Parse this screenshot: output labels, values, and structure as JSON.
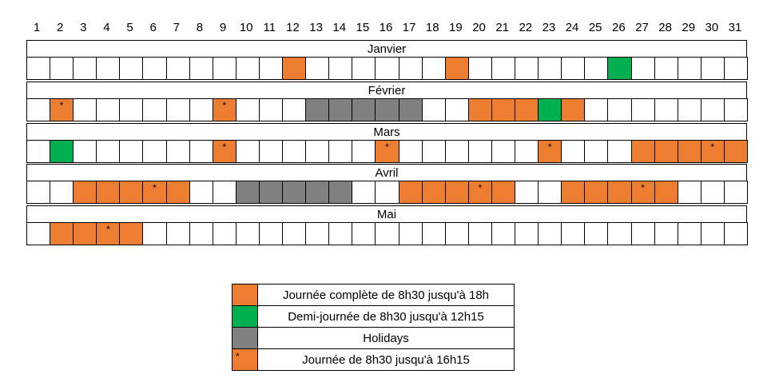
{
  "days": [
    "1",
    "2",
    "3",
    "4",
    "5",
    "6",
    "7",
    "8",
    "9",
    "10",
    "11",
    "12",
    "13",
    "14",
    "15",
    "16",
    "17",
    "18",
    "19",
    "20",
    "21",
    "22",
    "23",
    "24",
    "25",
    "26",
    "27",
    "28",
    "29",
    "30",
    "31"
  ],
  "colors": {
    "full_day": "#ED7D31",
    "half_day": "#00B050",
    "holiday": "#808080",
    "empty": "#FFFFFF",
    "border": "#000000"
  },
  "star_symbol": "*",
  "months": [
    {
      "name": "Janvier",
      "cells": [
        "-",
        "e",
        "e",
        "e",
        "e",
        "e",
        "e",
        "e",
        "e",
        "e",
        "e",
        "F",
        "e",
        "e",
        "e",
        "e",
        "e",
        "e",
        "F",
        "e",
        "e",
        "e",
        "e",
        "e",
        "e",
        "H",
        "e",
        "e",
        "e",
        "e",
        "e"
      ]
    },
    {
      "name": "Février",
      "cells": [
        "-",
        "S",
        "e",
        "e",
        "e",
        "e",
        "e",
        "e",
        "S",
        "e",
        "e",
        "e",
        "G",
        "G",
        "G",
        "G",
        "G",
        "e",
        "e",
        "F",
        "F",
        "F",
        "H",
        "F",
        "e",
        "e",
        "e",
        "e",
        "e",
        "e",
        "e"
      ]
    },
    {
      "name": "Mars",
      "cells": [
        "-",
        "H",
        "e",
        "e",
        "e",
        "e",
        "e",
        "e",
        "S",
        "e",
        "e",
        "e",
        "e",
        "e",
        "e",
        "S",
        "e",
        "e",
        "e",
        "e",
        "e",
        "e",
        "S",
        "e",
        "e",
        "e",
        "F",
        "F",
        "F",
        "S",
        "F"
      ]
    },
    {
      "name": "Avril",
      "cells": [
        "-",
        "e",
        "F",
        "F",
        "F",
        "S",
        "F",
        "e",
        "e",
        "G",
        "G",
        "G",
        "G",
        "G",
        "e",
        "e",
        "F",
        "F",
        "F",
        "S",
        "F",
        "e",
        "e",
        "F",
        "F",
        "F",
        "S",
        "F",
        "e",
        "e",
        "e"
      ]
    },
    {
      "name": "Mai",
      "cells": [
        "-",
        "F",
        "F",
        "S",
        "F",
        "e",
        "e",
        "e",
        "e",
        "e",
        "e",
        "e",
        "e",
        "e",
        "e",
        "e",
        "e",
        "e",
        "e",
        "e",
        "e",
        "e",
        "e",
        "e",
        "e",
        "e",
        "e",
        "e",
        "e",
        "e",
        "e"
      ]
    }
  ],
  "legend": [
    {
      "type": "full_day",
      "label": "Journée complète de 8h30 jusqu'à 18h"
    },
    {
      "type": "half_day",
      "label": "Demi-journée de 8h30 jusqu'à 12h15"
    },
    {
      "type": "holiday",
      "label": "Holidays"
    },
    {
      "type": "short_day",
      "label": "Journée de 8h30 jusqu'à 16h15"
    }
  ]
}
